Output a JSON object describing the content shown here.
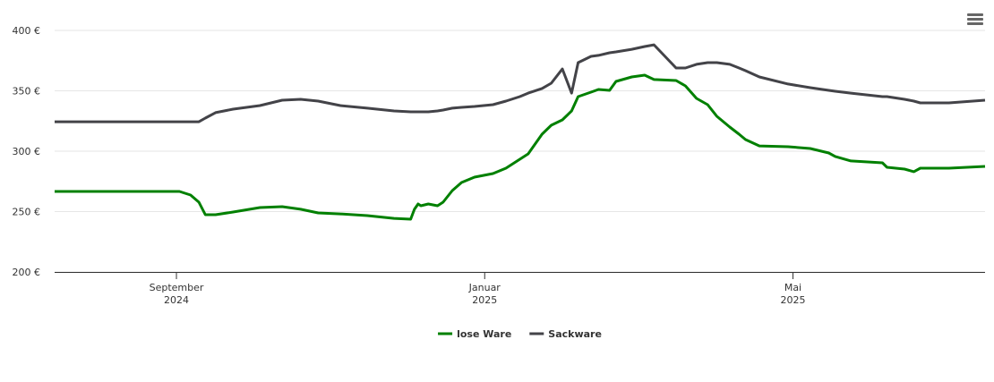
{
  "chart_data": {
    "type": "line",
    "x": [
      2024.535,
      2024.67,
      2024.682,
      2024.691,
      2024.698,
      2024.709,
      2024.728,
      2024.757,
      2024.781,
      2024.801,
      2024.82,
      2024.844,
      2024.873,
      2024.902,
      2024.92,
      2024.924,
      2024.928,
      2024.931,
      2024.939,
      2024.949,
      2024.955,
      2024.965,
      2024.975,
      2024.989,
      2025.009,
      2025.023,
      2025.038,
      2025.047,
      2025.062,
      2025.072,
      2025.084,
      2025.094,
      2025.101,
      2025.115,
      2025.123,
      2025.135,
      2025.142,
      2025.159,
      2025.173,
      2025.183,
      2025.207,
      2025.217,
      2025.229,
      2025.241,
      2025.251,
      2025.265,
      2025.275,
      2025.282,
      2025.297,
      2025.328,
      2025.352,
      2025.372,
      2025.379,
      2025.396,
      2025.43,
      2025.435,
      2025.454,
      2025.464,
      2025.471,
      2025.502,
      2025.541
    ],
    "series": [
      {
        "name": "lose Ware",
        "color": "#008000",
        "values": [
          266.7,
          266.7,
          263.7,
          257.8,
          247.4,
          247.4,
          249.6,
          253.3,
          254.1,
          251.9,
          248.9,
          248.1,
          246.7,
          244.4,
          243.7,
          251.9,
          256.3,
          254.8,
          256.3,
          254.8,
          257.8,
          267.4,
          274.1,
          278.5,
          281.5,
          285.9,
          293.3,
          297.8,
          314.1,
          321.5,
          325.9,
          333.3,
          345.2,
          348.9,
          351.1,
          350.4,
          357.8,
          361.5,
          363,
          359.3,
          358.5,
          354.1,
          343.7,
          338.5,
          328.9,
          320,
          314.1,
          309.6,
          304.4,
          303.7,
          302.2,
          298.5,
          295.6,
          291.9,
          290.4,
          286.7,
          285.2,
          283,
          285.9,
          285.9,
          287.4
        ]
      },
      {
        "name": "Sackware",
        "color": "#434348",
        "values": [
          324.4,
          324.4,
          324.4,
          324.4,
          327.4,
          331.9,
          334.8,
          337.8,
          342.2,
          343,
          341.5,
          337.8,
          335.6,
          333.3,
          332.6,
          332.6,
          332.6,
          332.6,
          332.6,
          333.3,
          334.1,
          335.6,
          336.3,
          337,
          338.5,
          341.5,
          345.2,
          348.1,
          351.9,
          356.3,
          368.1,
          348.1,
          373.3,
          378.5,
          379.3,
          381.5,
          382.2,
          384.4,
          386.7,
          388.1,
          368.9,
          368.9,
          371.9,
          373.3,
          373.3,
          371.9,
          368.9,
          366.7,
          361.5,
          355.6,
          352.6,
          350.4,
          349.6,
          348.1,
          345.2,
          345.2,
          343,
          341.5,
          340,
          340,
          342.2
        ]
      }
    ],
    "xlim": [
      2024.535,
      2025.541
    ],
    "xticks": [
      {
        "value": 2024.6667,
        "label": [
          "September",
          "2024"
        ]
      },
      {
        "value": 2025.0,
        "label": [
          "Januar",
          "2025"
        ]
      },
      {
        "value": 2025.3333,
        "label": [
          "Mai",
          "2025"
        ]
      }
    ],
    "ylim": [
      200,
      400
    ],
    "yticks": [
      {
        "value": 200,
        "label": "200 €"
      },
      {
        "value": 250,
        "label": "250 €"
      },
      {
        "value": 300,
        "label": "300 €"
      },
      {
        "value": 350,
        "label": "350 €"
      },
      {
        "value": 400,
        "label": "400 €"
      }
    ],
    "grid": true,
    "legend": "bottom"
  }
}
